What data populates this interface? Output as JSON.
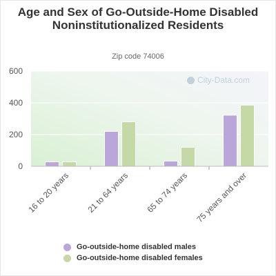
{
  "chart_data": {
    "type": "bar",
    "title": "Age and Sex of Go-Outside-Home Disabled Noninstitutionalized Residents",
    "subtitle": "Zip code 74006",
    "categories": [
      "16 to 20 years",
      "21 to 64 years",
      "65 to 74 years",
      "75 years and over"
    ],
    "series": [
      {
        "name": "Go-outside-home disabled males",
        "values": [
          28,
          220,
          33,
          322
        ],
        "color": "#bba6d9"
      },
      {
        "name": "Go-outside-home disabled females",
        "values": [
          28,
          280,
          120,
          385
        ],
        "color": "#c4d9a6"
      }
    ],
    "yticks": [
      0,
      200,
      400,
      600
    ],
    "ylim": [
      0,
      600
    ],
    "grid": true,
    "legend_position": "bottom"
  },
  "watermark": "City-Data.com"
}
